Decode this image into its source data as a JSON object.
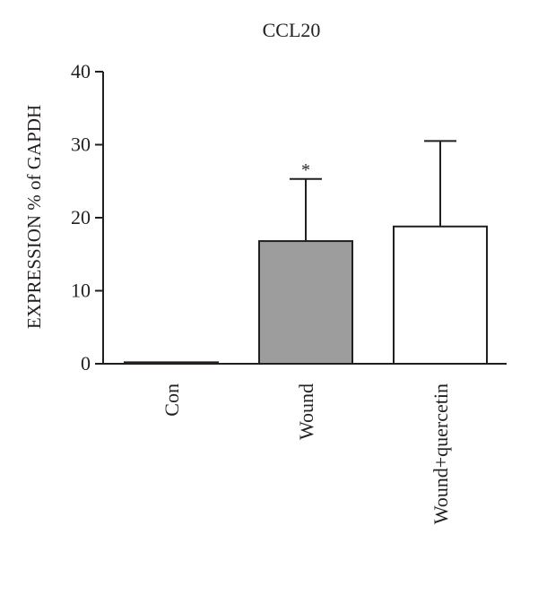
{
  "chart_data": {
    "type": "bar",
    "title": "CCL20",
    "ylabel": "EXPRESSION % of GAPDH",
    "xlabel": "",
    "ylim": [
      0,
      40
    ],
    "yticks": [
      0,
      10,
      20,
      30,
      40
    ],
    "categories": [
      "Con",
      "Wound",
      "Wound+quercetin"
    ],
    "values": [
      0.2,
      16.8,
      18.8
    ],
    "error_upper": [
      0,
      25.3,
      30.5
    ],
    "annotations": [
      "",
      "*",
      ""
    ],
    "bar_colors": [
      "#231f20",
      "#9d9d9d",
      "#ffffff"
    ],
    "edge_color": "#231f20",
    "grid": false,
    "legend": "none"
  }
}
